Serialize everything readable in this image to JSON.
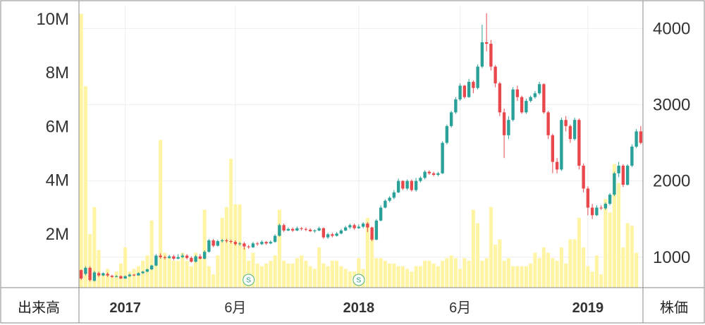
{
  "chart_data": {
    "type": "candlestick",
    "corner_labels": {
      "left": "出来高",
      "right": "株価"
    },
    "left_axis": {
      "ticks": [
        "2M",
        "4M",
        "6M",
        "8M",
        "10M"
      ],
      "tick_values": [
        2000000,
        4000000,
        6000000,
        8000000,
        10000000
      ],
      "range": [
        0,
        10500000
      ]
    },
    "right_axis": {
      "ticks": [
        "1000",
        "2000",
        "3000",
        "4000"
      ],
      "tick_values": [
        1000,
        2000,
        3000,
        4000
      ],
      "range": [
        600,
        4300
      ]
    },
    "x_ticks": [
      {
        "label": "2017",
        "bold": true,
        "index": 10
      },
      {
        "label": "6月",
        "bold": false,
        "index": 35
      },
      {
        "label": "2018",
        "bold": true,
        "index": 63
      },
      {
        "label": "6月",
        "bold": false,
        "index": 86
      },
      {
        "label": "2019",
        "bold": true,
        "index": 115
      }
    ],
    "markers": [
      {
        "label": "S",
        "index": 38
      },
      {
        "label": "S",
        "index": 63
      }
    ],
    "colors": {
      "up": "#2aa198",
      "down": "#e8474c",
      "volume": "#fff4a3",
      "grid": "#eeeeee",
      "border": "#888888"
    },
    "candles": [
      [
        830,
        720,
        840,
        700
      ],
      [
        780,
        860,
        880,
        760
      ],
      [
        860,
        700,
        880,
        680
      ],
      [
        690,
        800,
        820,
        680
      ],
      [
        790,
        760,
        810,
        740
      ],
      [
        760,
        790,
        800,
        750
      ],
      [
        780,
        760,
        800,
        740
      ],
      [
        755,
        740,
        770,
        730
      ],
      [
        740,
        750,
        765,
        735
      ],
      [
        750,
        720,
        760,
        715
      ],
      [
        720,
        750,
        760,
        715
      ],
      [
        750,
        770,
        785,
        740
      ],
      [
        770,
        760,
        780,
        750
      ],
      [
        760,
        790,
        800,
        755
      ],
      [
        790,
        810,
        820,
        780
      ],
      [
        810,
        840,
        850,
        800
      ],
      [
        840,
        890,
        900,
        830
      ],
      [
        890,
        1020,
        1040,
        880
      ],
      [
        1020,
        1000,
        1050,
        980
      ],
      [
        1000,
        990,
        1020,
        970
      ],
      [
        990,
        1010,
        1030,
        980
      ],
      [
        1010,
        980,
        1030,
        960
      ],
      [
        980,
        1000,
        1040,
        970
      ],
      [
        1000,
        1020,
        1050,
        990
      ],
      [
        1020,
        990,
        1040,
        970
      ],
      [
        990,
        940,
        1010,
        930
      ],
      [
        940,
        1010,
        1030,
        930
      ],
      [
        1010,
        980,
        1040,
        970
      ],
      [
        980,
        1070,
        1090,
        970
      ],
      [
        1070,
        1220,
        1240,
        1060
      ],
      [
        1220,
        1150,
        1240,
        1130
      ],
      [
        1150,
        1210,
        1230,
        1140
      ],
      [
        1210,
        1220,
        1240,
        1190
      ],
      [
        1220,
        1210,
        1240,
        1190
      ],
      [
        1210,
        1200,
        1230,
        1180
      ],
      [
        1200,
        1170,
        1220,
        1150
      ],
      [
        1170,
        1180,
        1200,
        1150
      ],
      [
        1180,
        1140,
        1200,
        1100
      ],
      [
        1140,
        1130,
        1160,
        1110
      ],
      [
        1130,
        1180,
        1200,
        1120
      ],
      [
        1180,
        1170,
        1200,
        1150
      ],
      [
        1170,
        1200,
        1220,
        1160
      ],
      [
        1200,
        1180,
        1210,
        1160
      ],
      [
        1180,
        1200,
        1220,
        1170
      ],
      [
        1200,
        1280,
        1300,
        1190
      ],
      [
        1280,
        1420,
        1440,
        1270
      ],
      [
        1420,
        1350,
        1440,
        1330
      ],
      [
        1350,
        1370,
        1390,
        1340
      ],
      [
        1370,
        1350,
        1390,
        1330
      ],
      [
        1350,
        1380,
        1400,
        1340
      ],
      [
        1380,
        1370,
        1395,
        1350
      ],
      [
        1370,
        1360,
        1390,
        1340
      ],
      [
        1360,
        1340,
        1380,
        1330
      ],
      [
        1340,
        1350,
        1365,
        1320
      ],
      [
        1350,
        1380,
        1400,
        1340
      ],
      [
        1380,
        1260,
        1390,
        1240
      ],
      [
        1260,
        1300,
        1320,
        1240
      ],
      [
        1300,
        1280,
        1320,
        1260
      ],
      [
        1280,
        1310,
        1330,
        1270
      ],
      [
        1310,
        1350,
        1370,
        1300
      ],
      [
        1350,
        1390,
        1410,
        1340
      ],
      [
        1390,
        1420,
        1440,
        1370
      ],
      [
        1420,
        1380,
        1440,
        1360
      ],
      [
        1380,
        1400,
        1430,
        1370
      ],
      [
        1400,
        1440,
        1460,
        1380
      ],
      [
        1440,
        1390,
        1460,
        1330
      ],
      [
        1390,
        1230,
        1400,
        1210
      ],
      [
        1230,
        1480,
        1500,
        1220
      ],
      [
        1480,
        1650,
        1680,
        1470
      ],
      [
        1650,
        1740,
        1760,
        1640
      ],
      [
        1740,
        1780,
        1800,
        1720
      ],
      [
        1780,
        1850,
        1880,
        1760
      ],
      [
        1850,
        2000,
        2030,
        1840
      ],
      [
        2000,
        1900,
        2010,
        1880
      ],
      [
        1900,
        2000,
        2020,
        1880
      ],
      [
        2000,
        1880,
        2020,
        1860
      ],
      [
        1880,
        2000,
        2040,
        1860
      ],
      [
        2000,
        2040,
        2060,
        1980
      ],
      [
        2040,
        2120,
        2140,
        2020
      ],
      [
        2120,
        2100,
        2140,
        2080
      ],
      [
        2100,
        2080,
        2120,
        2060
      ],
      [
        2080,
        2100,
        2120,
        2060
      ],
      [
        2100,
        2500,
        2520,
        2090
      ],
      [
        2500,
        2720,
        2740,
        2480
      ],
      [
        2720,
        2900,
        2920,
        2700
      ],
      [
        2900,
        3070,
        3100,
        2880
      ],
      [
        3070,
        3250,
        3280,
        3050
      ],
      [
        3250,
        3100,
        3260,
        3080
      ],
      [
        3100,
        3300,
        3340,
        3090
      ],
      [
        3300,
        3220,
        3320,
        3150
      ],
      [
        3220,
        3500,
        3530,
        3200
      ],
      [
        3500,
        3820,
        4050,
        3480
      ],
      [
        3820,
        3800,
        4200,
        3700
      ],
      [
        3800,
        3500,
        3850,
        3450
      ],
      [
        3500,
        3280,
        3520,
        3230
      ],
      [
        3280,
        2900,
        3300,
        2850
      ],
      [
        2900,
        2600,
        2950,
        2300
      ],
      [
        2600,
        2800,
        2850,
        2550
      ],
      [
        2800,
        3200,
        3230,
        2780
      ],
      [
        3200,
        3100,
        3250,
        3050
      ],
      [
        3100,
        2900,
        3120,
        2880
      ],
      [
        2900,
        3050,
        3080,
        2880
      ],
      [
        3050,
        3100,
        3120,
        3030
      ],
      [
        3100,
        3150,
        3180,
        3080
      ],
      [
        3150,
        3270,
        3300,
        3130
      ],
      [
        3270,
        2900,
        3280,
        2880
      ],
      [
        2900,
        2600,
        2920,
        2550
      ],
      [
        2600,
        2250,
        2620,
        2100
      ],
      [
        2250,
        2150,
        2300,
        2100
      ],
      [
        2150,
        2800,
        2830,
        2130
      ],
      [
        2800,
        2720,
        2850,
        2650
      ],
      [
        2720,
        2550,
        2740,
        2500
      ],
      [
        2550,
        2800,
        2830,
        2530
      ],
      [
        2800,
        2200,
        2820,
        2150
      ],
      [
        2200,
        1900,
        2230,
        1850
      ],
      [
        1900,
        1650,
        1930,
        1550
      ],
      [
        1650,
        1550,
        1700,
        1500
      ],
      [
        1550,
        1650,
        1680,
        1540
      ],
      [
        1650,
        1640,
        1680,
        1620
      ],
      [
        1640,
        1700,
        1720,
        1620
      ],
      [
        1700,
        1820,
        1840,
        1680
      ],
      [
        1820,
        2100,
        2120,
        1800
      ],
      [
        2100,
        2200,
        2250,
        2050
      ],
      [
        2200,
        1950,
        2220,
        1920
      ],
      [
        1950,
        2200,
        2220,
        1940
      ],
      [
        2200,
        2450,
        2480,
        2180
      ],
      [
        2450,
        2650,
        2680,
        2430
      ],
      [
        2650,
        2500,
        2720,
        2480
      ]
    ],
    "volume": [
      10200000,
      7500000,
      2000000,
      3000000,
      1400000,
      500000,
      700000,
      400000,
      600000,
      900000,
      1500000,
      600000,
      700000,
      800000,
      1000000,
      1200000,
      2500000,
      900000,
      5500000,
      1300000,
      1100000,
      1000000,
      1000000,
      1300000,
      1000000,
      800000,
      1300000,
      1100000,
      2900000,
      800000,
      500000,
      1200000,
      2600000,
      3000000,
      4800000,
      3100000,
      3100000,
      1500000,
      1000000,
      1300000,
      900000,
      800000,
      900000,
      1000000,
      1200000,
      2900000,
      1000000,
      900000,
      900000,
      1100000,
      1200000,
      1000000,
      800000,
      700000,
      1500000,
      900000,
      800000,
      1000000,
      1000000,
      800000,
      700000,
      600000,
      600000,
      1100000,
      700000,
      2600000,
      2000000,
      1100000,
      1100000,
      1000000,
      900000,
      900000,
      800000,
      800000,
      700000,
      600000,
      800000,
      800000,
      1000000,
      1000000,
      900000,
      800000,
      1000000,
      1100000,
      1200000,
      1100000,
      700000,
      1100000,
      1000000,
      2900000,
      2400000,
      1000000,
      1100000,
      3000000,
      1600000,
      1800000,
      1000000,
      1100000,
      800000,
      800000,
      800000,
      800000,
      900000,
      1300000,
      1100000,
      1500000,
      1300000,
      1100000,
      1000000,
      1500000,
      900000,
      1800000,
      1800000,
      2600000,
      1500000,
      800000,
      600000,
      1200000,
      500000,
      3300000,
      2800000,
      4600000,
      3900000,
      1500000,
      2400000,
      2300000,
      1300000
    ]
  }
}
